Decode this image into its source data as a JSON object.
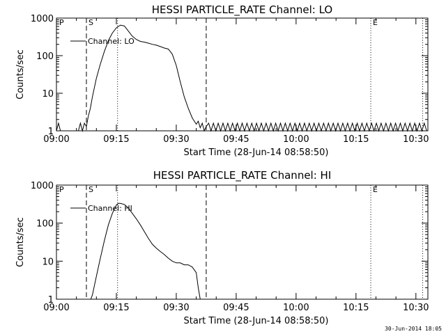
{
  "chart_data": [
    {
      "type": "line",
      "title": "HESSI PARTICLE_RATE Channel: LO",
      "xlabel": "Start Time (28-Jun-14 08:58:50)",
      "ylabel": "Counts/sec",
      "x_unit": "minutes after 09:00 UT",
      "xlim": [
        0,
        93
      ],
      "ylim": [
        1,
        1000
      ],
      "y_scale": "log",
      "x_ticks": [
        "09:00",
        "09:15",
        "09:30",
        "09:45",
        "10:00",
        "10:15",
        "10:30"
      ],
      "x_tick_values": [
        0,
        15,
        30,
        45,
        60,
        75,
        90
      ],
      "y_ticks": [
        "1",
        "10",
        "100",
        "1000"
      ],
      "y_tick_values": [
        1,
        10,
        100,
        1000
      ],
      "legend": {
        "position": "top-left",
        "entries": [
          "Channel: LO"
        ]
      },
      "markers": [
        {
          "label": "S",
          "time_min": 7.5,
          "style": "dashed"
        },
        {
          "label": "",
          "time_min": 15.3,
          "style": "dotted"
        },
        {
          "label": "",
          "time_min": 37.5,
          "style": "dashed"
        },
        {
          "label": "E",
          "time_min": 78.7,
          "style": "dotted"
        },
        {
          "label": "",
          "time_min": 91.7,
          "style": "dotted"
        }
      ],
      "corner_label": "P",
      "series": [
        {
          "name": "Channel: LO",
          "x": [
            0,
            0.5,
            1,
            1.5,
            5.5,
            6,
            6.5,
            7,
            7.5,
            8,
            8.5,
            9,
            10,
            11,
            12,
            13,
            14,
            15,
            16,
            17,
            18,
            19,
            20,
            21,
            22,
            23,
            24,
            25,
            26,
            27,
            28,
            29,
            30,
            31,
            32,
            33,
            34,
            35,
            35.5,
            36,
            36.5,
            37,
            37.5
          ],
          "y": [
            1,
            1.6,
            1,
            1,
            1,
            1.6,
            1,
            1.6,
            1.3,
            2.5,
            4,
            8,
            25,
            60,
            130,
            250,
            400,
            550,
            650,
            620,
            450,
            330,
            270,
            240,
            230,
            215,
            200,
            190,
            175,
            160,
            150,
            110,
            55,
            20,
            8,
            4,
            2.2,
            1.5,
            1.8,
            1.2,
            1.6,
            1,
            1.3
          ],
          "noise_band": {
            "from_min": 37.5,
            "to_min": 93,
            "low": 1,
            "high": 1.6
          }
        }
      ]
    },
    {
      "type": "line",
      "title": "HESSI PARTICLE_RATE Channel: HI",
      "xlabel": "Start Time (28-Jun-14 08:58:50)",
      "ylabel": "Counts/sec",
      "x_unit": "minutes after 09:00 UT",
      "xlim": [
        0,
        93
      ],
      "ylim": [
        1,
        1000
      ],
      "y_scale": "log",
      "x_ticks": [
        "09:00",
        "09:15",
        "09:30",
        "09:45",
        "10:00",
        "10:15",
        "10:30"
      ],
      "x_tick_values": [
        0,
        15,
        30,
        45,
        60,
        75,
        90
      ],
      "y_ticks": [
        "1",
        "10",
        "100",
        "1000"
      ],
      "y_tick_values": [
        1,
        10,
        100,
        1000
      ],
      "legend": {
        "position": "top-left",
        "entries": [
          "Channel: HI"
        ]
      },
      "markers": [
        {
          "label": "S",
          "time_min": 7.5,
          "style": "dashed"
        },
        {
          "label": "",
          "time_min": 15.3,
          "style": "dotted"
        },
        {
          "label": "",
          "time_min": 37.5,
          "style": "dashed"
        },
        {
          "label": "E",
          "time_min": 78.7,
          "style": "dotted"
        },
        {
          "label": "",
          "time_min": 91.7,
          "style": "dotted"
        }
      ],
      "corner_label": "P",
      "series": [
        {
          "name": "Channel: HI",
          "x": [
            8.6,
            9,
            10,
            11,
            12,
            13,
            14,
            15,
            15.5,
            16,
            17,
            18,
            19,
            20,
            21,
            22,
            23,
            24,
            25,
            26,
            27,
            28,
            29,
            30,
            31,
            32,
            33,
            34,
            35,
            35.5,
            36
          ],
          "y": [
            1,
            1.3,
            4,
            12,
            35,
            90,
            180,
            300,
            330,
            330,
            310,
            250,
            180,
            130,
            90,
            60,
            40,
            28,
            22,
            18,
            15,
            12,
            10,
            9,
            9,
            8,
            8,
            7,
            5,
            2,
            1
          ]
        }
      ]
    }
  ],
  "footer": {
    "timestamp": "30-Jun-2014 18:05"
  }
}
